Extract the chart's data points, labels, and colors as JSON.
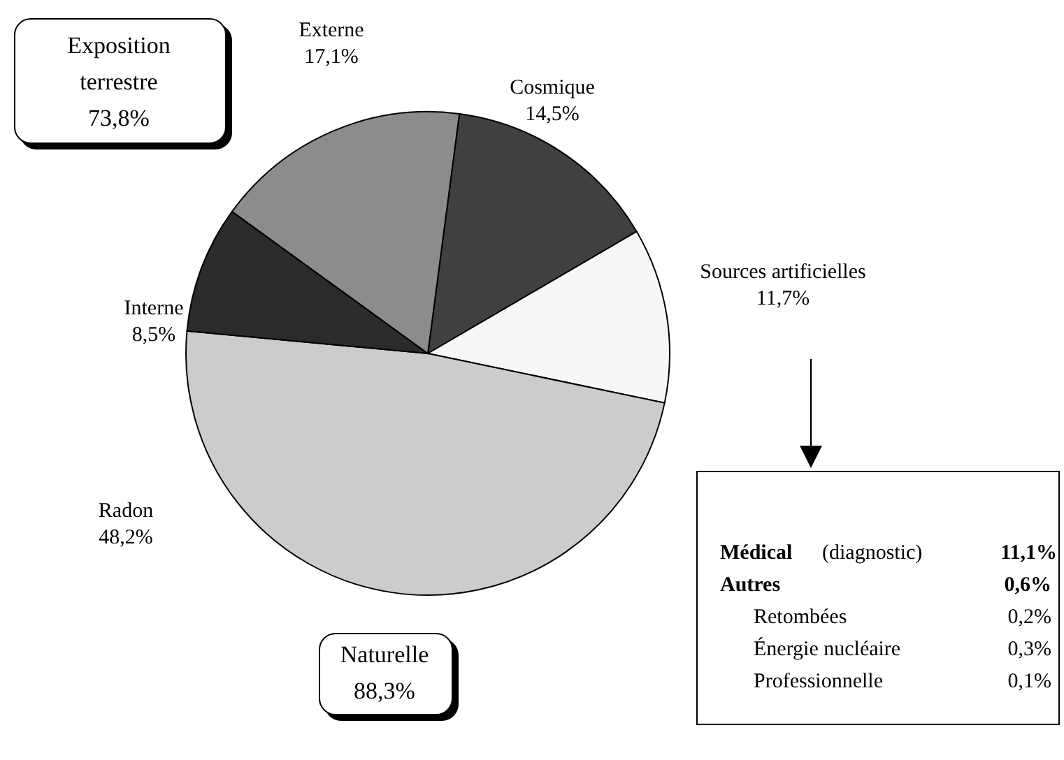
{
  "chart_data": {
    "type": "pie",
    "categories": [
      "Cosmique",
      "Sources artificielles",
      "Radon",
      "Interne",
      "Externe"
    ],
    "values": [
      14.5,
      11.7,
      48.2,
      8.5,
      17.1
    ],
    "colors": [
      "#404040",
      "#f7f7f7",
      "#cccccc",
      "#2b2b2b",
      "#8c8c8c"
    ],
    "value_labels": [
      "14,5%",
      "11,7%",
      "48,2%",
      "8,5%",
      "17,1%"
    ],
    "annotations": [
      "Exposition terrestre 73,8%",
      "Naturelle 88,3%",
      "Médical",
      "(diagnostic)",
      "11,1%",
      "Autres",
      "0,6%",
      "Retombées",
      "0,2%",
      "Énergie nucléaire",
      "0,3%",
      "Professionnelle",
      "0,1%"
    ]
  }
}
